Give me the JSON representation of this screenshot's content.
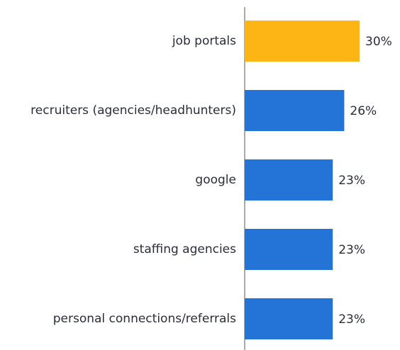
{
  "chart_data": {
    "type": "hbar",
    "categories": [
      "job portals",
      "recruiters (agencies/headhunters)",
      "google",
      "staffing agencies",
      "personal connections/referrals"
    ],
    "values": [
      30,
      26,
      23,
      23,
      23
    ],
    "value_labels": [
      "30%",
      "26%",
      "23%",
      "23%",
      "23%"
    ],
    "colors": [
      "#fdb515",
      "#2474d8",
      "#2474d8",
      "#2474d8",
      "#2474d8"
    ],
    "xlim": [
      0,
      40
    ]
  }
}
